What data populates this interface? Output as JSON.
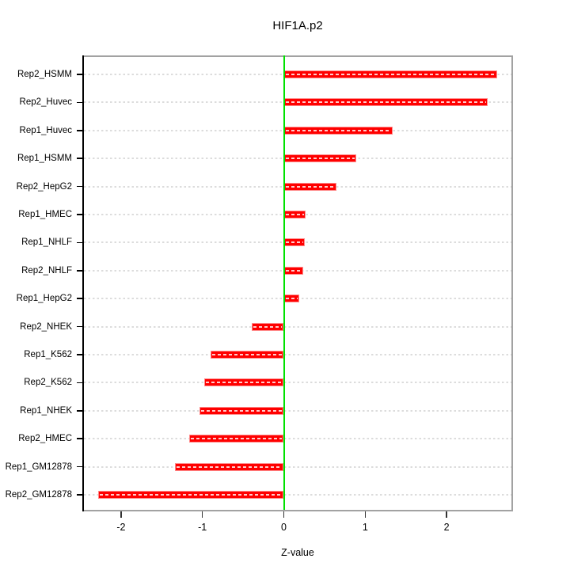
{
  "chart_data": {
    "type": "bar",
    "orientation": "horizontal",
    "title": "HIF1A.p2",
    "xlabel": "Z-value",
    "ylabel": "",
    "categories": [
      "Rep2_HSMM",
      "Rep2_Huvec",
      "Rep1_Huvec",
      "Rep1_HSMM",
      "Rep2_HepG2",
      "Rep1_HMEC",
      "Rep1_NHLF",
      "Rep2_NHLF",
      "Rep1_HepG2",
      "Rep2_NHEK",
      "Rep1_K562",
      "Rep2_K562",
      "Rep1_NHEK",
      "Rep2_HMEC",
      "Rep1_GM12878",
      "Rep2_GM12878"
    ],
    "values": [
      2.62,
      2.5,
      1.34,
      0.89,
      0.65,
      0.27,
      0.26,
      0.24,
      0.19,
      -0.39,
      -0.9,
      -0.98,
      -1.04,
      -1.16,
      -1.34,
      -2.28
    ],
    "x_ticks": [
      -2,
      -1,
      0,
      1,
      2
    ],
    "x_tick_labels": [
      "-2",
      "-1",
      "0",
      "1",
      "2"
    ],
    "xlim": [
      -2.47,
      2.81
    ],
    "grid": "dashed-horizontal-per-category",
    "legend": "none",
    "zero_line": true,
    "colors": {
      "bar_fill": "#ff0000",
      "bar_edge": "#ff8c8c",
      "bar_stripe": "rgba(255,255,255,0.8)",
      "zero_line": "#00e100",
      "gridline": "#dcdcdc",
      "box": "#a2a2a2",
      "y_axis": "#000000",
      "tick": "#333333",
      "text": "#000000"
    }
  }
}
